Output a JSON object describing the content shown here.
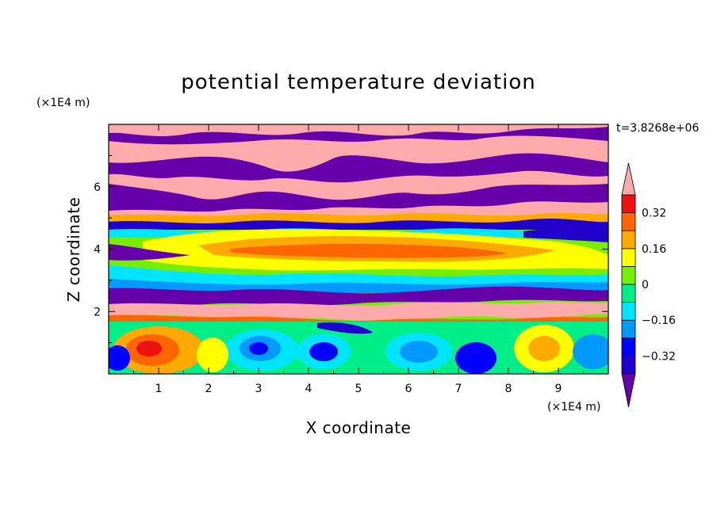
{
  "chart_data": {
    "type": "heatmap",
    "title": "potential temperature deviation",
    "xlabel": "X coordinate",
    "ylabel": "Z coordinate",
    "x_unit": "(×1E4 m)",
    "y_unit": "(×1E4 m)",
    "time_label": "t=3.8268e+06",
    "xlim": [
      0,
      10
    ],
    "ylim": [
      0,
      8
    ],
    "x_ticks": [
      "1",
      "2",
      "3",
      "4",
      "5",
      "6",
      "7",
      "8",
      "9"
    ],
    "y_ticks": [
      "2",
      "4",
      "6"
    ],
    "colorbar": {
      "levels": [
        -0.4,
        -0.32,
        -0.24,
        -0.16,
        -0.08,
        0,
        0.08,
        0.16,
        0.24,
        0.32,
        0.4
      ],
      "labels": [
        "0.32",
        "0.16",
        "0",
        "−0.16",
        "−0.32"
      ],
      "label_values": [
        0.32,
        0.16,
        0,
        -0.16,
        -0.32
      ],
      "colors": [
        "#2200cc",
        "#0000ff",
        "#0099ff",
        "#00e5ff",
        "#00ee88",
        "#77ee00",
        "#ffff00",
        "#ffaa00",
        "#ff6600",
        "#ee1111"
      ],
      "under_color": "#6600aa",
      "over_color": "#ffaaaa"
    }
  }
}
